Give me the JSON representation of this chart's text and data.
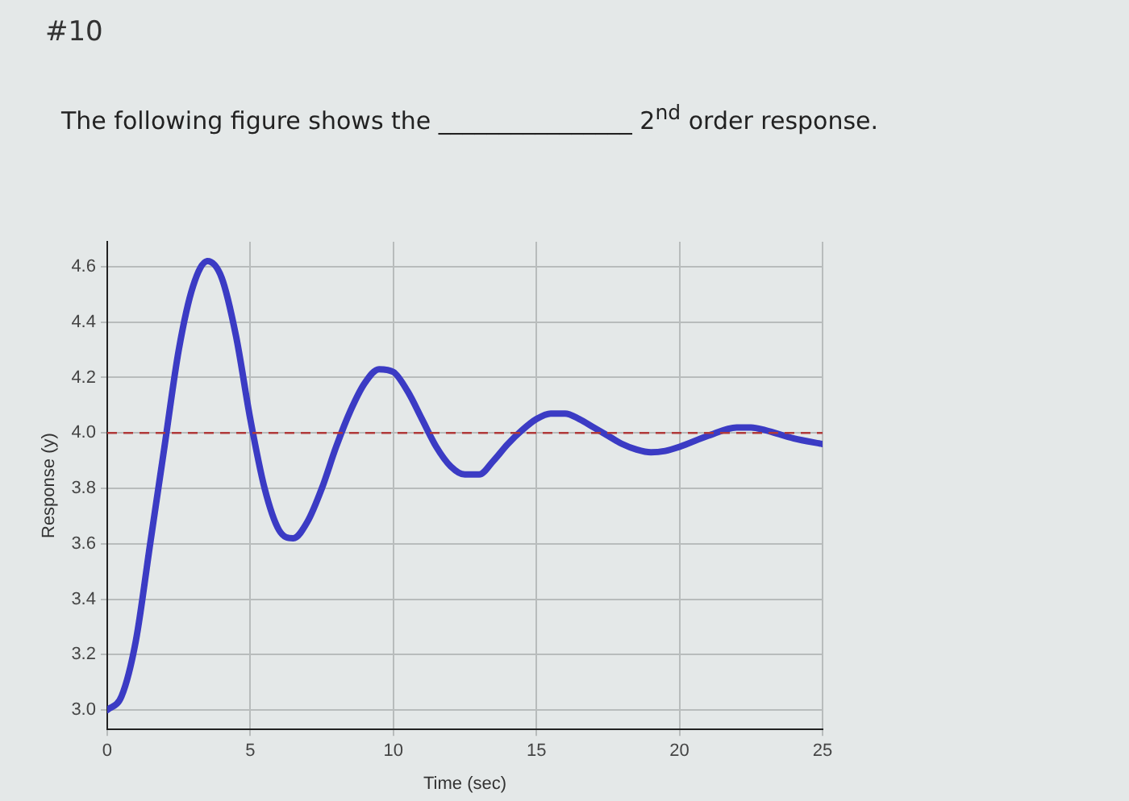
{
  "chart_data": {
    "type": "line",
    "annotations": [
      "#10",
      "The following figure shows the ________________ 2$^{nd}$ order response."
    ],
    "xlabel": "Time (sec)",
    "ylabel": "Response (y)",
    "x": [
      0,
      0.5,
      1,
      1.5,
      2,
      2.5,
      3,
      3.5,
      4,
      4.5,
      5,
      5.5,
      6,
      6.5,
      7,
      7.5,
      8,
      8.5,
      9,
      9.5,
      10,
      10.5,
      11,
      11.5,
      12,
      12.5,
      13,
      13.5,
      14,
      14.5,
      15,
      15.5,
      16,
      16.5,
      17,
      17.5,
      18,
      18.5,
      19,
      19.5,
      20,
      21,
      22,
      22.5,
      23,
      24,
      25
    ],
    "series": [
      {
        "color": "#3b3bc4",
        "values": [
          3.0,
          3.05,
          3.25,
          3.6,
          3.95,
          4.3,
          4.53,
          4.62,
          4.56,
          4.35,
          4.05,
          3.8,
          3.65,
          3.62,
          3.68,
          3.8,
          3.95,
          4.08,
          4.18,
          4.23,
          4.22,
          4.15,
          4.05,
          3.95,
          3.88,
          3.85,
          3.85,
          3.9,
          3.96,
          4.01,
          4.05,
          4.07,
          4.07,
          4.05,
          4.02,
          3.99,
          3.96,
          3.94,
          3.93,
          3.935,
          3.95,
          3.99,
          4.02,
          4.02,
          4.01,
          3.98,
          3.96
        ]
      }
    ],
    "xlim": [
      0,
      25
    ],
    "xticks": [
      0,
      5,
      10,
      15,
      20,
      25
    ],
    "ylim": [
      2.93,
      4.69
    ],
    "yticks": [
      {
        "value": 3,
        "label": "3.0"
      },
      3.2,
      3.4,
      3.6,
      3.8,
      {
        "value": 4,
        "label": "4.0"
      },
      4.2,
      4.4,
      4.6
    ],
    "ref_lines": [
      {
        "axis": "y",
        "value": 4,
        "color": "#b03a3a",
        "line_style": "dashed"
      }
    ],
    "grid": true,
    "legend": false,
    "marker": "none",
    "line_style": "solid"
  }
}
